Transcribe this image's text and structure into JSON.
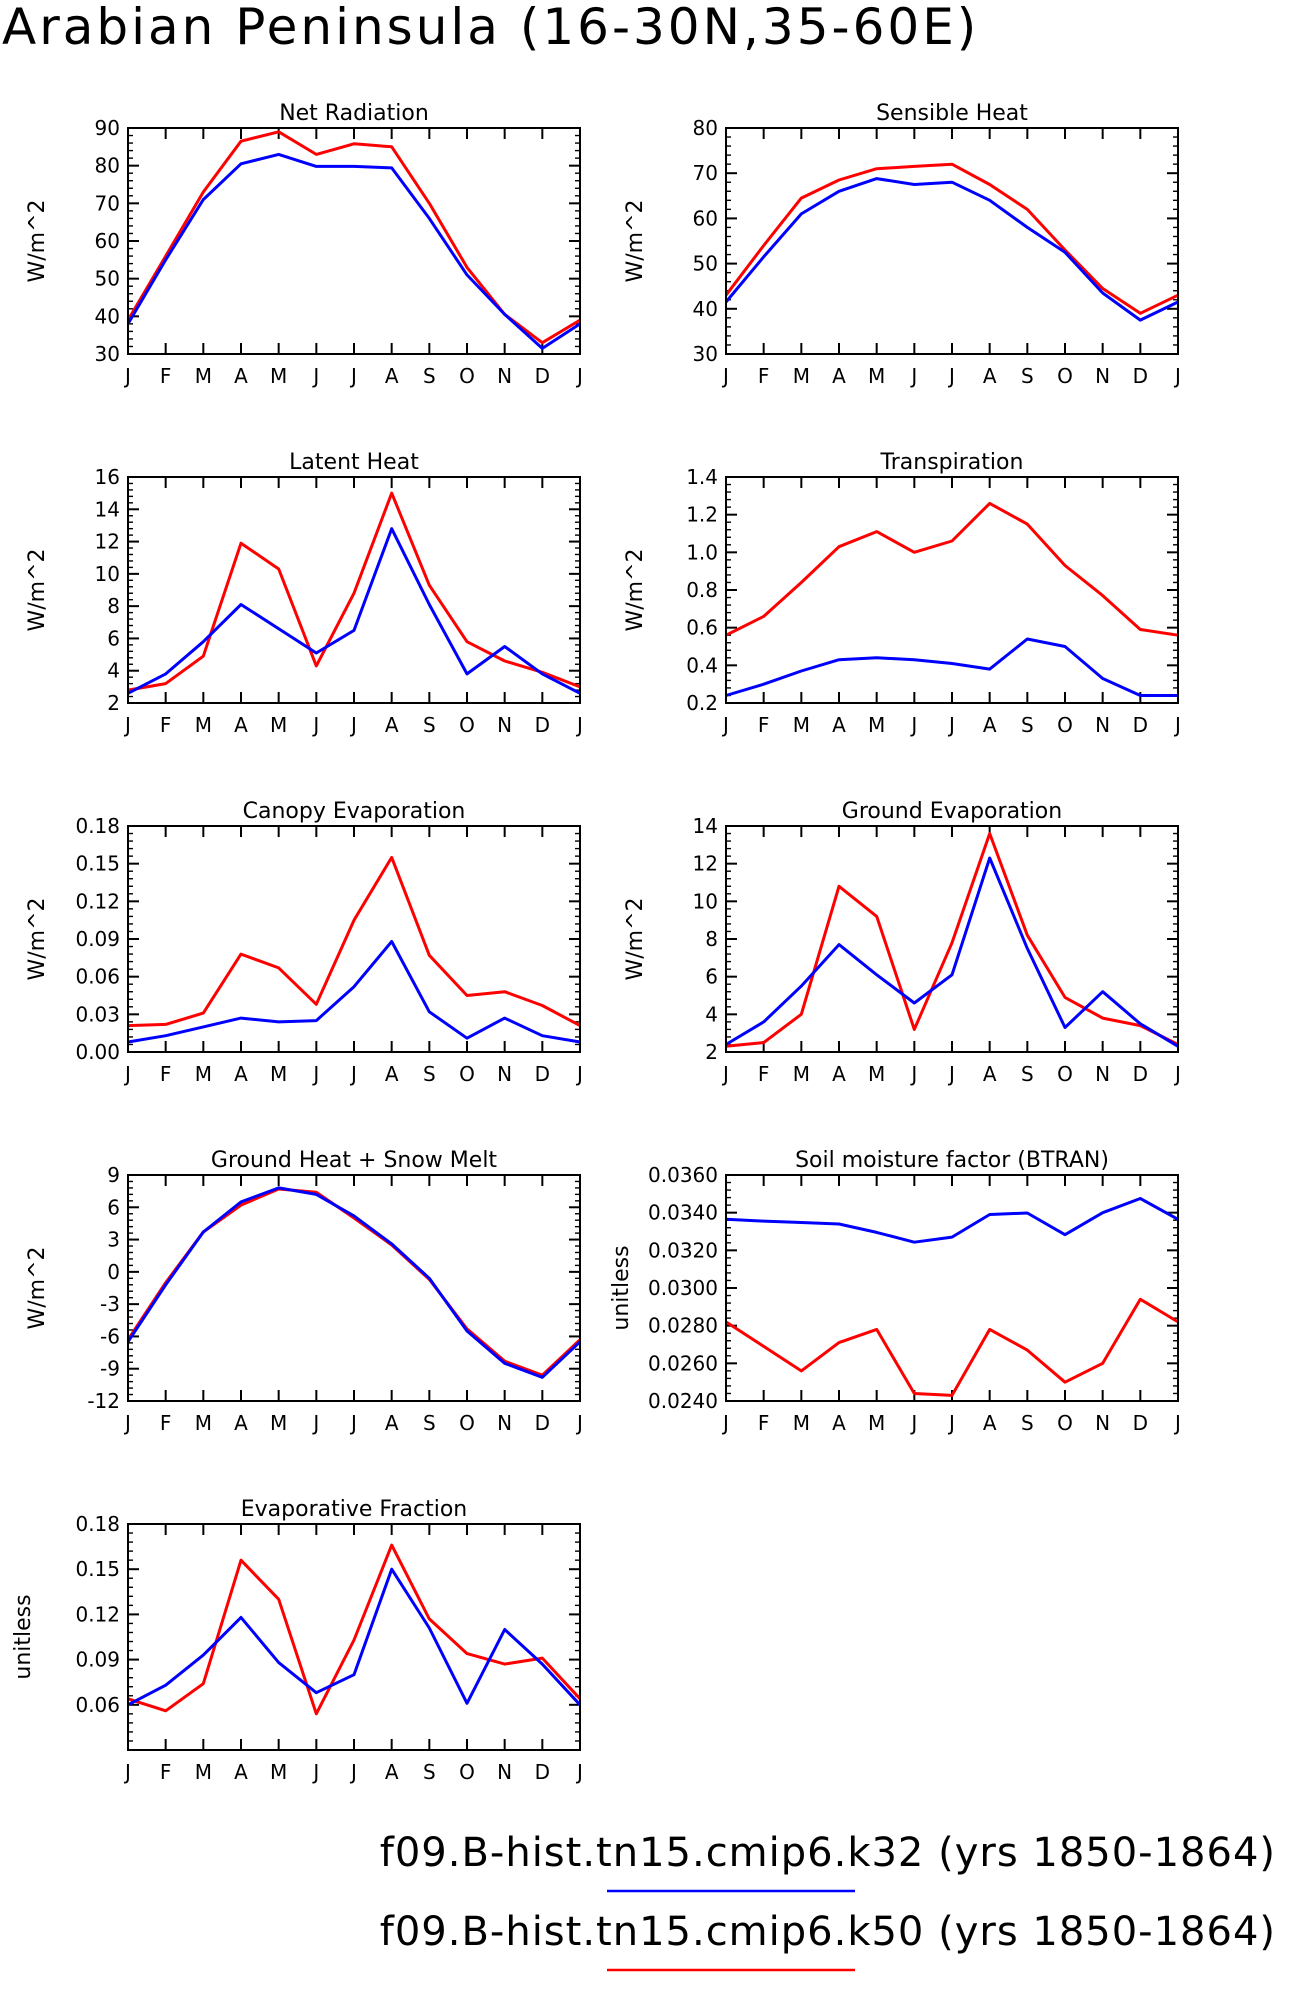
{
  "title": "Arabian Peninsula (16-30N,35-60E)",
  "months": [
    "J",
    "F",
    "M",
    "A",
    "M",
    "J",
    "J",
    "A",
    "S",
    "O",
    "N",
    "D",
    "J"
  ],
  "colors": {
    "k32": "#0000ff",
    "k50": "#ff0000"
  },
  "legend": [
    {
      "label": "f09.B-hist.tn15.cmip6.k32 (yrs 1850-1864)",
      "color": "#0000ff"
    },
    {
      "label": "f09.B-hist.tn15.cmip6.k50 (yrs 1850-1864)",
      "color": "#ff0000"
    }
  ],
  "chart_data": [
    {
      "type": "line",
      "title": "Net Radiation",
      "ylabel": "W/m^2",
      "ylim": [
        30,
        90
      ],
      "yticks": [
        "30",
        "40",
        "50",
        "60",
        "70",
        "80",
        "90"
      ],
      "series": [
        {
          "name": "f09.B-hist.tn15.cmip6.k50 (yrs 1850-1864)",
          "values": [
            39,
            56,
            73,
            86.5,
            89,
            83,
            85.8,
            85,
            70,
            53,
            40.5,
            33,
            39
          ]
        },
        {
          "name": "f09.B-hist.tn15.cmip6.k32 (yrs 1850-1864)",
          "values": [
            38,
            55,
            71,
            80.5,
            83,
            79.8,
            79.8,
            79.4,
            66,
            51,
            40.5,
            31.5,
            38
          ]
        }
      ]
    },
    {
      "type": "line",
      "title": "Sensible Heat",
      "ylabel": "W/m^2",
      "ylim": [
        30,
        80
      ],
      "yticks": [
        "30",
        "40",
        "50",
        "60",
        "70",
        "80"
      ],
      "series": [
        {
          "name": "f09.B-hist.tn15.cmip6.k50 (yrs 1850-1864)",
          "values": [
            43,
            54,
            64.5,
            68.5,
            71,
            71.5,
            72,
            67.5,
            62,
            53,
            44.5,
            39,
            43
          ]
        },
        {
          "name": "f09.B-hist.tn15.cmip6.k32 (yrs 1850-1864)",
          "values": [
            41.5,
            51.5,
            61,
            66,
            68.8,
            67.5,
            68,
            64,
            58,
            52.5,
            43.5,
            37.5,
            41.5
          ]
        }
      ]
    },
    {
      "type": "line",
      "title": "Latent Heat",
      "ylabel": "W/m^2",
      "ylim": [
        2,
        16
      ],
      "yticks": [
        "2",
        "4",
        "6",
        "8",
        "10",
        "12",
        "14",
        "16"
      ],
      "series": [
        {
          "name": "f09.B-hist.tn15.cmip6.k50 (yrs 1850-1864)",
          "values": [
            2.8,
            3.2,
            4.9,
            11.9,
            10.3,
            4.3,
            8.8,
            15.0,
            9.3,
            5.8,
            4.6,
            3.9,
            3.0
          ]
        },
        {
          "name": "f09.B-hist.tn15.cmip6.k32 (yrs 1850-1864)",
          "values": [
            2.6,
            3.8,
            5.8,
            8.1,
            6.6,
            5.1,
            6.5,
            12.8,
            8.1,
            3.8,
            5.5,
            3.8,
            2.6
          ]
        }
      ]
    },
    {
      "type": "line",
      "title": "Transpiration",
      "ylabel": "W/m^2",
      "ylim": [
        0.2,
        1.4
      ],
      "yticks": [
        "0.2",
        "0.4",
        "0.6",
        "0.8",
        "1.0",
        "1.2",
        "1.4"
      ],
      "series": [
        {
          "name": "f09.B-hist.tn15.cmip6.k50 (yrs 1850-1864)",
          "values": [
            0.56,
            0.66,
            0.84,
            1.03,
            1.11,
            1.0,
            1.06,
            1.26,
            1.15,
            0.93,
            0.77,
            0.59,
            0.56
          ]
        },
        {
          "name": "f09.B-hist.tn15.cmip6.k32 (yrs 1850-1864)",
          "values": [
            0.24,
            0.3,
            0.37,
            0.43,
            0.44,
            0.43,
            0.41,
            0.38,
            0.54,
            0.5,
            0.33,
            0.24,
            0.24
          ]
        }
      ]
    },
    {
      "type": "line",
      "title": "Canopy Evaporation",
      "ylabel": "W/m^2",
      "ylim": [
        0,
        0.18
      ],
      "yticks": [
        "0.00",
        "0.03",
        "0.06",
        "0.09",
        "0.12",
        "0.15",
        "0.18"
      ],
      "series": [
        {
          "name": "f09.B-hist.tn15.cmip6.k50 (yrs 1850-1864)",
          "values": [
            0.021,
            0.022,
            0.031,
            0.078,
            0.067,
            0.038,
            0.105,
            0.155,
            0.077,
            0.045,
            0.048,
            0.037,
            0.021
          ]
        },
        {
          "name": "f09.B-hist.tn15.cmip6.k32 (yrs 1850-1864)",
          "values": [
            0.008,
            0.013,
            0.02,
            0.027,
            0.024,
            0.025,
            0.052,
            0.088,
            0.032,
            0.011,
            0.027,
            0.013,
            0.008
          ]
        }
      ]
    },
    {
      "type": "line",
      "title": "Ground Evaporation",
      "ylabel": "W/m^2",
      "ylim": [
        2,
        14
      ],
      "yticks": [
        "2",
        "4",
        "6",
        "8",
        "10",
        "12",
        "14"
      ],
      "series": [
        {
          "name": "f09.B-hist.tn15.cmip6.k50 (yrs 1850-1864)",
          "values": [
            2.3,
            2.5,
            4.0,
            10.8,
            9.2,
            3.2,
            7.8,
            13.6,
            8.2,
            4.9,
            3.8,
            3.4,
            2.4
          ]
        },
        {
          "name": "f09.B-hist.tn15.cmip6.k32 (yrs 1850-1864)",
          "values": [
            2.4,
            3.6,
            5.5,
            7.7,
            6.1,
            4.6,
            6.1,
            12.3,
            7.5,
            3.3,
            5.2,
            3.5,
            2.3
          ]
        }
      ]
    },
    {
      "type": "line",
      "title": "Ground Heat + Snow Melt",
      "ylabel": "W/m^2",
      "ylim": [
        -12,
        9
      ],
      "yticks": [
        "-12",
        "-9",
        "-6",
        "-3",
        "0",
        "3",
        "6",
        "9"
      ],
      "series": [
        {
          "name": "f09.B-hist.tn15.cmip6.k50 (yrs 1850-1864)",
          "values": [
            -6.3,
            -1.0,
            3.7,
            6.2,
            7.7,
            7.4,
            5.0,
            2.5,
            -0.7,
            -5.3,
            -8.3,
            -9.6,
            -6.3
          ]
        },
        {
          "name": "f09.B-hist.tn15.cmip6.k32 (yrs 1850-1864)",
          "values": [
            -6.5,
            -1.2,
            3.7,
            6.5,
            7.8,
            7.2,
            5.2,
            2.6,
            -0.6,
            -5.5,
            -8.5,
            -9.8,
            -6.5
          ]
        }
      ]
    },
    {
      "type": "line",
      "title": "Soil moisture factor (BTRAN)",
      "ylabel": "unitless",
      "ylim": [
        0.024,
        0.036
      ],
      "yticks": [
        "0.0240",
        "0.0260",
        "0.0280",
        "0.0300",
        "0.0320",
        "0.0340",
        "0.0360"
      ],
      "series": [
        {
          "name": "f09.B-hist.tn15.cmip6.k32 (yrs 1850-1864)",
          "values": [
            0.03365,
            0.03355,
            0.03348,
            0.0334,
            0.03295,
            0.03243,
            0.0327,
            0.0339,
            0.03398,
            0.03283,
            0.034,
            0.03475,
            0.03365
          ]
        },
        {
          "name": "f09.B-hist.tn15.cmip6.k50 (yrs 1850-1864)",
          "values": [
            0.0282,
            0.0269,
            0.0256,
            0.0271,
            0.0278,
            0.0244,
            0.0243,
            0.0278,
            0.0267,
            0.025,
            0.026,
            0.0294,
            0.0282
          ]
        }
      ]
    },
    {
      "type": "line",
      "title": "Evaporative Fraction",
      "ylabel": "unitless",
      "ylim": [
        0.03,
        0.18
      ],
      "yticks": [
        "0.06",
        "0.09",
        "0.12",
        "0.15",
        "0.18"
      ],
      "series": [
        {
          "name": "f09.B-hist.tn15.cmip6.k50 (yrs 1850-1864)",
          "values": [
            0.064,
            0.056,
            0.074,
            0.156,
            0.13,
            0.054,
            0.103,
            0.166,
            0.117,
            0.094,
            0.087,
            0.091,
            0.064
          ]
        },
        {
          "name": "f09.B-hist.tn15.cmip6.k32 (yrs 1850-1864)",
          "values": [
            0.06,
            0.073,
            0.093,
            0.118,
            0.088,
            0.068,
            0.08,
            0.15,
            0.111,
            0.061,
            0.11,
            0.087,
            0.06
          ]
        }
      ]
    }
  ]
}
